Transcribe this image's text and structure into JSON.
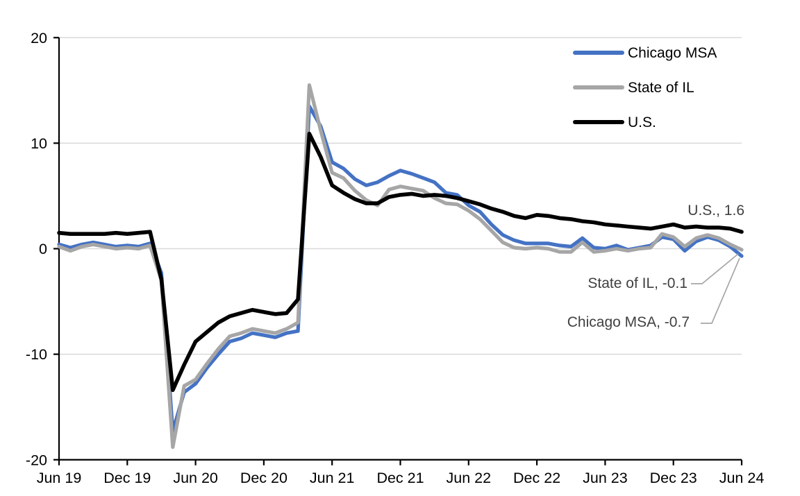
{
  "chart_data": {
    "type": "line",
    "title": "",
    "frequency": "monthly",
    "x_start": "Jun 2019",
    "x_end": "Jun 2024",
    "x_tick_labels": [
      "Jun 19",
      "Dec 19",
      "Jun 20",
      "Dec 20",
      "Jun 21",
      "Dec 21",
      "Jun 22",
      "Dec 22",
      "Jun 23",
      "Dec 23",
      "Jun 24"
    ],
    "y_ticks": [
      20,
      10,
      0,
      -10,
      -20
    ],
    "ylim": [
      -20,
      20
    ],
    "grid": "horizontal-light-gray",
    "legend_position": "top-right",
    "series": [
      {
        "name": "Chicago MSA",
        "color": "#4472C4",
        "values": [
          0.4,
          0.1,
          0.4,
          0.6,
          0.4,
          0.2,
          0.3,
          0.2,
          0.5,
          -2.3,
          -17.3,
          -13.6,
          -12.8,
          -11.3,
          -10.0,
          -8.8,
          -8.5,
          -8.0,
          -8.2,
          -8.4,
          -8.0,
          -7.8,
          13.5,
          11.6,
          8.2,
          7.6,
          6.6,
          6.0,
          6.3,
          6.9,
          7.4,
          7.1,
          6.7,
          6.3,
          5.3,
          5.1,
          4.1,
          3.5,
          2.3,
          1.3,
          0.8,
          0.5,
          0.5,
          0.5,
          0.3,
          0.2,
          1.0,
          0.1,
          0.0,
          0.3,
          -0.1,
          0.1,
          0.3,
          1.1,
          0.9,
          -0.2,
          0.7,
          1.1,
          0.8,
          0.2,
          -0.7
        ]
      },
      {
        "name": "State of IL",
        "color": "#A6A6A6",
        "values": [
          0.2,
          -0.2,
          0.2,
          0.4,
          0.2,
          0.0,
          0.1,
          0.0,
          0.3,
          -3.0,
          -18.8,
          -13.0,
          -12.4,
          -10.9,
          -9.5,
          -8.3,
          -8.0,
          -7.6,
          -7.8,
          -8.0,
          -7.6,
          -7.0,
          15.5,
          11.2,
          7.2,
          6.7,
          5.5,
          4.6,
          4.1,
          5.6,
          5.9,
          5.7,
          5.5,
          4.8,
          4.3,
          4.2,
          3.6,
          2.8,
          1.7,
          0.6,
          0.1,
          0.0,
          0.1,
          0.0,
          -0.3,
          -0.3,
          0.6,
          -0.3,
          -0.2,
          0.0,
          -0.2,
          0.0,
          0.1,
          1.4,
          1.1,
          0.2,
          1.0,
          1.3,
          1.0,
          0.4,
          -0.1
        ]
      },
      {
        "name": "U.S.",
        "color": "#000000",
        "values": [
          1.5,
          1.4,
          1.4,
          1.4,
          1.4,
          1.5,
          1.4,
          1.5,
          1.6,
          -2.9,
          -13.4,
          -11.0,
          -8.8,
          -7.9,
          -7.0,
          -6.4,
          -6.1,
          -5.8,
          -6.0,
          -6.2,
          -6.1,
          -4.8,
          10.9,
          8.7,
          6.0,
          5.3,
          4.7,
          4.3,
          4.3,
          4.9,
          5.1,
          5.2,
          5.0,
          5.1,
          5.0,
          4.8,
          4.5,
          4.2,
          3.8,
          3.5,
          3.1,
          2.9,
          3.2,
          3.1,
          2.9,
          2.8,
          2.6,
          2.5,
          2.3,
          2.2,
          2.1,
          2.0,
          1.9,
          2.1,
          2.3,
          2.0,
          2.1,
          2.0,
          2.0,
          1.9,
          1.6
        ]
      }
    ],
    "annotations": [
      {
        "text": "U.S., 1.6",
        "series": "U.S.",
        "value": 1.6
      },
      {
        "text": "State of IL, -0.1",
        "series": "State of IL",
        "value": -0.1
      },
      {
        "text": "Chicago MSA, -0.7",
        "series": "Chicago MSA",
        "value": -0.7
      }
    ],
    "colors": {
      "gridline": "#D9D9D9",
      "axis": "#000000",
      "annotation_text": "#404040",
      "leader_line": "#A6A6A6"
    }
  }
}
